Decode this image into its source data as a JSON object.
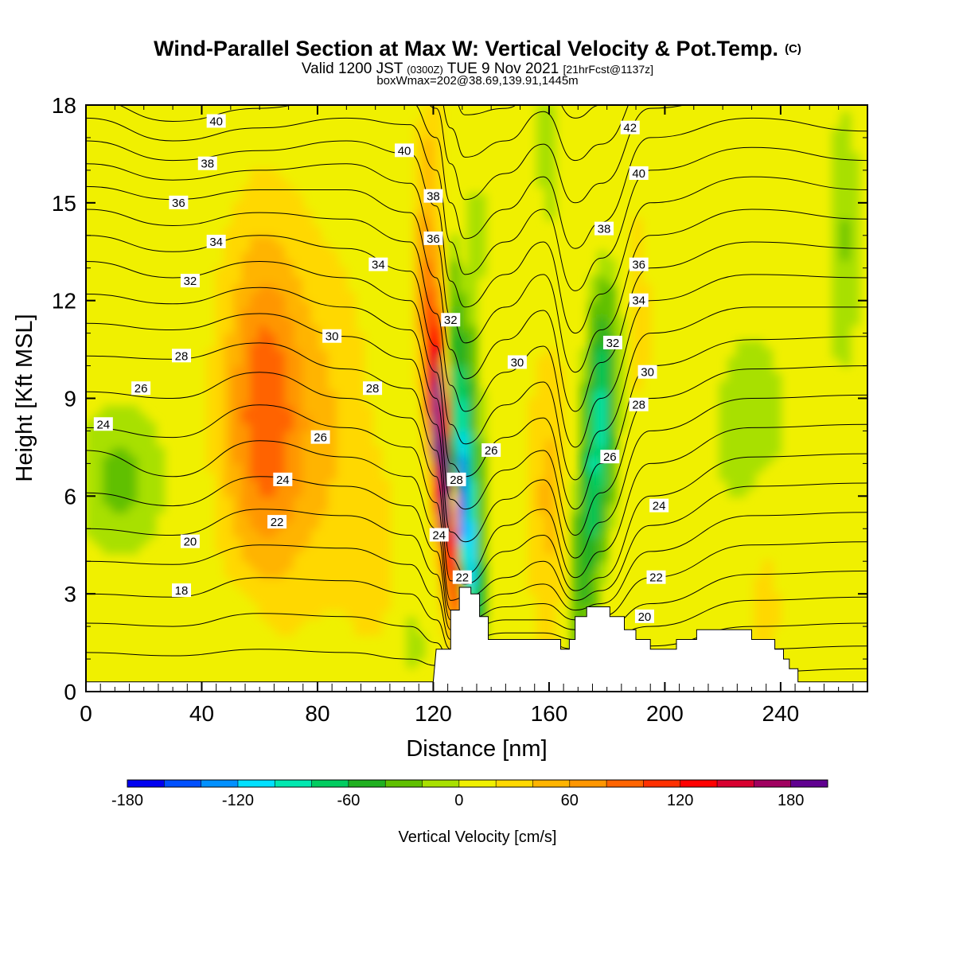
{
  "title": "Wind-Parallel Section at Max W: Vertical Velocity & Pot.Temp.",
  "copyright_mark": "(C)",
  "valid_time": {
    "pre": "Valid 1200 JST",
    "utc": "(0300Z)",
    "date": "TUE 9 Nov 2021",
    "forecast": "[21hrFcst@1137z]"
  },
  "box_info": "boxWmax=202@38.69,139.91,1445m",
  "chart_data": {
    "type": "heatmap",
    "title": "Wind-Parallel Section at Max W: Vertical Velocity & Pot.Temp.",
    "xlabel": "Distance [nm]",
    "ylabel": "Height [Kft MSL]",
    "xlim": [
      0,
      270
    ],
    "ylim": [
      0,
      18
    ],
    "x_ticks": [
      0,
      40,
      80,
      120,
      160,
      200,
      240
    ],
    "y_ticks": [
      0,
      3,
      6,
      9,
      12,
      15,
      18
    ],
    "colorbar": {
      "title": "Vertical Velocity [cm/s]",
      "min": -180,
      "max": 200,
      "step": 20,
      "tick_values": [
        -180,
        -120,
        -60,
        0,
        60,
        120,
        180
      ],
      "colors": [
        "#0000f0",
        "#0050ff",
        "#0090ff",
        "#00e0ff",
        "#00e8b0",
        "#00cc60",
        "#20b020",
        "#60c000",
        "#a8e000",
        "#f0f000",
        "#ffd800",
        "#ffb400",
        "#ff9600",
        "#ff6400",
        "#ff3000",
        "#ff0000",
        "#d80030",
        "#a00060",
        "#600090"
      ]
    },
    "terrain_profile": [
      [
        0,
        0.3
      ],
      [
        120,
        0.3
      ],
      [
        121,
        1.3
      ],
      [
        126,
        1.3
      ],
      [
        126,
        2.5
      ],
      [
        129,
        2.5
      ],
      [
        129,
        3.2
      ],
      [
        133,
        3.2
      ],
      [
        133,
        3.0
      ],
      [
        136,
        3.0
      ],
      [
        136,
        2.3
      ],
      [
        139,
        2.3
      ],
      [
        139,
        1.6
      ],
      [
        164,
        1.6
      ],
      [
        164,
        1.3
      ],
      [
        167,
        1.3
      ],
      [
        167,
        1.6
      ],
      [
        169,
        1.6
      ],
      [
        169,
        2.3
      ],
      [
        173,
        2.3
      ],
      [
        173,
        2.6
      ],
      [
        181,
        2.6
      ],
      [
        181,
        2.3
      ],
      [
        186,
        2.3
      ],
      [
        186,
        1.9
      ],
      [
        190,
        1.9
      ],
      [
        190,
        1.6
      ],
      [
        195,
        1.6
      ],
      [
        195,
        1.3
      ],
      [
        204,
        1.3
      ],
      [
        204,
        1.6
      ],
      [
        211,
        1.6
      ],
      [
        211,
        1.9
      ],
      [
        230,
        1.9
      ],
      [
        230,
        1.6
      ],
      [
        238,
        1.6
      ],
      [
        238,
        1.3
      ],
      [
        241,
        1.3
      ],
      [
        241,
        1.0
      ],
      [
        243,
        1.0
      ],
      [
        243,
        0.7
      ],
      [
        246,
        0.7
      ],
      [
        246,
        0.3
      ],
      [
        270,
        0.3
      ]
    ],
    "theta_profiles": [
      {
        "x": 0,
        "h": [
          0.1,
          1.2,
          2.1,
          3.0,
          4.0,
          5.0,
          6.1,
          7.4,
          8.1,
          9.2,
          10.3,
          11.3,
          12.2,
          13.2,
          14.0,
          14.8,
          15.5,
          16.2,
          16.9,
          17.6,
          18.2,
          18.9,
          19.5,
          20.1,
          20.7
        ]
      },
      {
        "x": 30,
        "h": [
          0.1,
          1.1,
          2.0,
          2.9,
          3.9,
          4.8,
          5.7,
          6.6,
          7.8,
          9.0,
          10.2,
          11.1,
          11.9,
          12.7,
          13.5,
          14.3,
          15.1,
          15.7,
          16.3,
          16.9,
          17.5,
          18.1,
          18.7,
          19.3,
          19.9
        ]
      },
      {
        "x": 60,
        "h": [
          0.1,
          1.3,
          2.4,
          3.5,
          4.5,
          5.6,
          6.6,
          7.7,
          8.8,
          9.8,
          10.7,
          11.6,
          12.4,
          13.2,
          14.0,
          14.7,
          15.4,
          16.0,
          16.6,
          17.3,
          17.9,
          18.5,
          19.1,
          19.7,
          20.3
        ]
      },
      {
        "x": 90,
        "h": [
          0.1,
          1.2,
          2.3,
          3.4,
          4.4,
          5.4,
          6.3,
          7.2,
          8.1,
          9.0,
          9.9,
          10.9,
          11.8,
          12.7,
          13.6,
          14.5,
          15.4,
          16.2,
          16.9,
          17.6,
          18.3,
          18.9,
          19.5,
          20.1,
          20.7
        ]
      },
      {
        "x": 112,
        "h": [
          0.1,
          1.0,
          2.0,
          3.0,
          3.9,
          4.8,
          5.7,
          6.6,
          7.5,
          8.4,
          9.3,
          10.2,
          11.1,
          12.0,
          12.9,
          13.8,
          14.7,
          15.6,
          16.5,
          17.4,
          18.1,
          18.8,
          19.5,
          20.1,
          20.7
        ]
      },
      {
        "x": 121,
        "h": [
          0.1,
          0.8,
          1.5,
          2.2,
          2.9,
          3.6,
          4.3,
          5.0,
          5.8,
          6.6,
          7.4,
          8.2,
          9.0,
          9.8,
          10.6,
          11.6,
          12.7,
          13.8,
          14.9,
          16.0,
          17.0,
          17.9,
          18.7,
          19.4,
          20.1
        ]
      },
      {
        "x": 126,
        "h": [
          0.1,
          0.5,
          0.9,
          1.3,
          1.6,
          1.9,
          2.2,
          2.5,
          2.8,
          3.4,
          4.1,
          4.9,
          5.9,
          7.0,
          8.2,
          9.4,
          10.5,
          11.5,
          12.6,
          13.8,
          15.0,
          16.2,
          17.3,
          18.4,
          19.4
        ]
      },
      {
        "x": 131,
        "h": [
          0.1,
          0.5,
          0.9,
          1.3,
          1.6,
          1.9,
          2.2,
          2.5,
          2.9,
          3.3,
          3.6,
          4.6,
          5.6,
          6.6,
          7.6,
          8.6,
          9.6,
          10.7,
          11.8,
          12.8,
          13.9,
          15.1,
          16.4,
          17.7,
          19.0
        ]
      },
      {
        "x": 145,
        "h": [
          0.1,
          0.6,
          1.1,
          1.5,
          1.8,
          2.2,
          2.6,
          3.0,
          3.5,
          4.3,
          5.1,
          5.9,
          6.8,
          7.8,
          8.8,
          9.8,
          10.8,
          11.8,
          12.8,
          13.8,
          14.8,
          15.9,
          16.9,
          17.9,
          18.9
        ]
      },
      {
        "x": 158,
        "h": [
          0.1,
          0.6,
          1.1,
          1.5,
          1.8,
          2.2,
          2.7,
          3.3,
          4.0,
          4.8,
          5.6,
          6.5,
          7.4,
          8.4,
          9.5,
          10.6,
          11.7,
          12.8,
          13.8,
          14.8,
          15.8,
          16.8,
          17.8,
          18.7,
          19.6
        ]
      },
      {
        "x": 169,
        "h": [
          0.1,
          0.5,
          0.9,
          1.3,
          1.6,
          1.9,
          2.2,
          2.5,
          2.8,
          3.1,
          3.5,
          4.1,
          4.8,
          5.6,
          6.5,
          7.5,
          8.6,
          9.8,
          11.0,
          12.3,
          13.6,
          15.0,
          16.3,
          17.6,
          18.9
        ]
      },
      {
        "x": 178,
        "h": [
          0.1,
          0.5,
          0.9,
          1.3,
          1.6,
          1.9,
          2.3,
          2.7,
          3.1,
          3.5,
          4.3,
          5.2,
          6.1,
          7.0,
          8.0,
          9.0,
          10.1,
          11.1,
          12.2,
          13.3,
          14.4,
          15.6,
          16.8,
          18.0,
          19.2
        ]
      },
      {
        "x": 195,
        "h": [
          0.1,
          0.5,
          0.9,
          1.4,
          2.0,
          2.7,
          3.5,
          4.3,
          5.1,
          6.0,
          7.0,
          8.0,
          9.0,
          10.0,
          11.0,
          12.0,
          13.0,
          14.0,
          15.0,
          16.0,
          17.0,
          17.9,
          18.8,
          19.6,
          20.4
        ]
      },
      {
        "x": 230,
        "h": [
          0.1,
          0.6,
          1.3,
          2.0,
          2.8,
          3.6,
          4.5,
          5.4,
          6.3,
          7.2,
          8.1,
          9.0,
          9.9,
          10.8,
          11.8,
          12.8,
          13.8,
          14.8,
          15.8,
          16.7,
          17.6,
          18.4,
          19.2,
          20.0,
          20.8
        ]
      },
      {
        "x": 270,
        "h": [
          0.1,
          0.7,
          1.4,
          2.1,
          2.9,
          3.7,
          4.6,
          5.5,
          6.4,
          7.3,
          8.2,
          9.1,
          10.0,
          10.9,
          11.8,
          12.7,
          13.6,
          14.5,
          15.4,
          16.3,
          17.2,
          18.1,
          18.9,
          19.7,
          20.5
        ]
      }
    ],
    "theta_labels": [
      {
        "text": "40",
        "x": 45,
        "y": 17.5
      },
      {
        "text": "38",
        "x": 42,
        "y": 16.2
      },
      {
        "text": "36",
        "x": 32,
        "y": 15.0
      },
      {
        "text": "34",
        "x": 45,
        "y": 13.8
      },
      {
        "text": "32",
        "x": 36,
        "y": 12.6
      },
      {
        "text": "28",
        "x": 33,
        "y": 10.3
      },
      {
        "text": "26",
        "x": 19,
        "y": 9.3
      },
      {
        "text": "24",
        "x": 6,
        "y": 8.2
      },
      {
        "text": "20",
        "x": 36,
        "y": 4.6
      },
      {
        "text": "18",
        "x": 33,
        "y": 3.1
      },
      {
        "text": "40",
        "x": 110,
        "y": 16.6
      },
      {
        "text": "38",
        "x": 120,
        "y": 15.2
      },
      {
        "text": "36",
        "x": 120,
        "y": 13.9
      },
      {
        "text": "34",
        "x": 101,
        "y": 13.1
      },
      {
        "text": "30",
        "x": 85,
        "y": 10.9
      },
      {
        "text": "28",
        "x": 99,
        "y": 9.3
      },
      {
        "text": "26",
        "x": 81,
        "y": 7.8
      },
      {
        "text": "24",
        "x": 68,
        "y": 6.5
      },
      {
        "text": "22",
        "x": 66,
        "y": 5.2
      },
      {
        "text": "32",
        "x": 126,
        "y": 11.4
      },
      {
        "text": "28",
        "x": 128,
        "y": 6.5
      },
      {
        "text": "24",
        "x": 122,
        "y": 4.8
      },
      {
        "text": "22",
        "x": 130,
        "y": 3.5
      },
      {
        "text": "26",
        "x": 140,
        "y": 7.4
      },
      {
        "text": "30",
        "x": 149,
        "y": 10.1
      },
      {
        "text": "42",
        "x": 188,
        "y": 17.3
      },
      {
        "text": "40",
        "x": 191,
        "y": 15.9
      },
      {
        "text": "38",
        "x": 179,
        "y": 14.2
      },
      {
        "text": "36",
        "x": 191,
        "y": 13.1
      },
      {
        "text": "34",
        "x": 191,
        "y": 12.0
      },
      {
        "text": "32",
        "x": 182,
        "y": 10.7
      },
      {
        "text": "30",
        "x": 194,
        "y": 9.8
      },
      {
        "text": "28",
        "x": 191,
        "y": 8.8
      },
      {
        "text": "26",
        "x": 181,
        "y": 7.2
      },
      {
        "text": "24",
        "x": 198,
        "y": 5.7
      },
      {
        "text": "22",
        "x": 197,
        "y": 3.5
      },
      {
        "text": "20",
        "x": 193,
        "y": 2.3
      }
    ],
    "velocity_blobs": [
      {
        "x": 124,
        "y": 6.5,
        "sx": 2.5,
        "sy": 3.2,
        "v": 175,
        "rot": -0.05
      },
      {
        "x": 123,
        "y": 9.0,
        "sx": 3.0,
        "sy": 3.5,
        "v": 80,
        "rot": -0.05
      },
      {
        "x": 130,
        "y": 5.5,
        "sx": 2.4,
        "sy": 2.8,
        "v": -160,
        "rot": -0.05
      },
      {
        "x": 131,
        "y": 8.5,
        "sx": 3.0,
        "sy": 3.5,
        "v": -70,
        "rot": -0.05
      },
      {
        "x": 62,
        "y": 10.0,
        "sx": 10,
        "sy": 3.5,
        "v": 65,
        "rot": 0
      },
      {
        "x": 62,
        "y": 6.5,
        "sx": 11,
        "sy": 3.0,
        "v": 40,
        "rot": 0
      },
      {
        "x": 85,
        "y": 8.0,
        "sx": 10,
        "sy": 4.0,
        "v": 30,
        "rot": 0
      },
      {
        "x": 175,
        "y": 6.0,
        "sx": 4.0,
        "sy": 3.5,
        "v": -70,
        "rot": 0.05
      },
      {
        "x": 178,
        "y": 9.5,
        "sx": 3.5,
        "sy": 2.5,
        "v": -40,
        "rot": 0
      },
      {
        "x": 160,
        "y": 6.0,
        "sx": 5.0,
        "sy": 3.5,
        "v": 40,
        "rot": 0
      },
      {
        "x": 12,
        "y": 6.5,
        "sx": 14,
        "sy": 2.2,
        "v": -28,
        "rot": 0
      },
      {
        "x": 230,
        "y": 8.0,
        "sx": 14,
        "sy": 3.5,
        "v": -22,
        "rot": 0
      },
      {
        "x": 262,
        "y": 14.0,
        "sx": 5.0,
        "sy": 4.0,
        "v": -25,
        "rot": 0
      },
      {
        "x": 160,
        "y": 16.5,
        "sx": 4.0,
        "sy": 3.0,
        "v": -22,
        "rot": 0
      },
      {
        "x": 196,
        "y": 15.0,
        "sx": 3.0,
        "sy": 4.0,
        "v": -18,
        "rot": 0
      },
      {
        "x": 55,
        "y": 1.0,
        "sx": 5.0,
        "sy": 1.5,
        "v": -22,
        "rot": 0
      },
      {
        "x": 112,
        "y": 1.5,
        "sx": 5.0,
        "sy": 1.2,
        "v": -22,
        "rot": 0
      },
      {
        "x": 235,
        "y": 3.0,
        "sx": 5.0,
        "sy": 2.0,
        "v": 28,
        "rot": 0
      },
      {
        "x": 120,
        "y": 16.0,
        "sx": 3.0,
        "sy": 3.0,
        "v": 40,
        "rot": 0
      },
      {
        "x": 135,
        "y": 14.0,
        "sx": 2.5,
        "sy": 4.0,
        "v": -20,
        "rot": 0
      },
      {
        "x": 192,
        "y": 12.0,
        "sx": 3.0,
        "sy": 3.0,
        "v": 30,
        "rot": 0
      },
      {
        "x": 100,
        "y": 4.0,
        "sx": 6.0,
        "sy": 2.0,
        "v": 25,
        "rot": 0
      }
    ]
  }
}
